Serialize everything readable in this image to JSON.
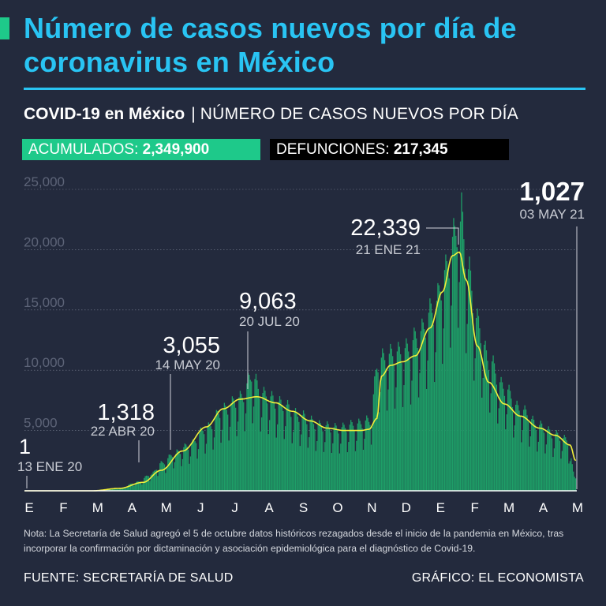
{
  "colors": {
    "accent": "#1ec98a",
    "title": "#29c4f3",
    "bars": "#1e9e67",
    "trend": "#f2ef3a",
    "grid": "#8a91a2",
    "background": "#232a3d"
  },
  "title": "Número de casos nuevos por día de coronavirus en México",
  "subtitle": {
    "main": "COVID-19 en México",
    "separator": "|",
    "rest": "NÚMERO DE CASOS NUEVOS POR DÍA"
  },
  "stats": {
    "acumulados_label": "ACUMULADOS:",
    "acumulados_value": "2,349,900",
    "defunciones_label": "DEFUNCIONES:",
    "defunciones_value": "217,345"
  },
  "chart_data": {
    "type": "bar",
    "ylim": [
      0,
      25000
    ],
    "y_ticks": [
      {
        "value": 25000,
        "label": "25,000"
      },
      {
        "value": 20000,
        "label": "20,000"
      },
      {
        "value": 15000,
        "label": "15,000"
      },
      {
        "value": 10000,
        "label": "10,000"
      },
      {
        "value": 5000,
        "label": "5,000"
      }
    ],
    "x_tick_labels": [
      "E",
      "F",
      "M",
      "A",
      "M",
      "J",
      "J",
      "A",
      "S",
      "O",
      "N",
      "D",
      "E",
      "F",
      "M",
      "A",
      "M"
    ],
    "x_range": [
      "2020-01-01",
      "2021-05-04"
    ],
    "series": {
      "daily_cases_keypoints": [
        [
          "2020-01-13",
          1
        ],
        [
          "2020-03-01",
          0
        ],
        [
          "2020-03-25",
          200
        ],
        [
          "2020-04-10",
          700
        ],
        [
          "2020-04-22",
          1318
        ],
        [
          "2020-05-01",
          2200
        ],
        [
          "2020-05-14",
          3055
        ],
        [
          "2020-05-25",
          3600
        ],
        [
          "2020-06-10",
          5000
        ],
        [
          "2020-06-25",
          6500
        ],
        [
          "2020-07-10",
          7400
        ],
        [
          "2020-07-20",
          9063
        ],
        [
          "2020-07-31",
          7700
        ],
        [
          "2020-08-15",
          7000
        ],
        [
          "2020-09-01",
          6000
        ],
        [
          "2020-09-20",
          5200
        ],
        [
          "2020-10-05",
          5000
        ],
        [
          "2020-10-20",
          5300
        ],
        [
          "2020-11-01",
          5600
        ],
        [
          "2020-11-10",
          10500
        ],
        [
          "2020-11-25",
          11000
        ],
        [
          "2020-12-05",
          11300
        ],
        [
          "2020-12-15",
          12500
        ],
        [
          "2020-12-28",
          14500
        ],
        [
          "2021-01-08",
          17500
        ],
        [
          "2021-01-15",
          20200
        ],
        [
          "2021-01-21",
          22339
        ],
        [
          "2021-01-28",
          17500
        ],
        [
          "2021-02-05",
          13500
        ],
        [
          "2021-02-15",
          10500
        ],
        [
          "2021-02-28",
          8300
        ],
        [
          "2021-03-15",
          6500
        ],
        [
          "2021-04-01",
          5200
        ],
        [
          "2021-04-15",
          4500
        ],
        [
          "2021-04-25",
          4100
        ],
        [
          "2021-05-03",
          1027
        ]
      ],
      "trend_keypoints": [
        [
          "2020-01-01",
          0
        ],
        [
          "2020-03-01",
          0
        ],
        [
          "2020-03-25",
          200
        ],
        [
          "2020-04-15",
          700
        ],
        [
          "2020-05-01",
          1700
        ],
        [
          "2020-05-20",
          3300
        ],
        [
          "2020-06-10",
          5300
        ],
        [
          "2020-06-25",
          6800
        ],
        [
          "2020-07-10",
          7600
        ],
        [
          "2020-07-25",
          7800
        ],
        [
          "2020-08-10",
          7300
        ],
        [
          "2020-08-25",
          6600
        ],
        [
          "2020-09-10",
          5800
        ],
        [
          "2020-09-25",
          5200
        ],
        [
          "2020-10-10",
          5000
        ],
        [
          "2020-10-25",
          5000
        ],
        [
          "2020-11-01",
          5100
        ],
        [
          "2020-11-08",
          6000
        ],
        [
          "2020-11-12",
          9500
        ],
        [
          "2020-11-20",
          10400
        ],
        [
          "2020-12-01",
          10700
        ],
        [
          "2020-12-12",
          11200
        ],
        [
          "2020-12-25",
          13500
        ],
        [
          "2021-01-05",
          16500
        ],
        [
          "2021-01-14",
          19500
        ],
        [
          "2021-01-20",
          19800
        ],
        [
          "2021-01-26",
          17500
        ],
        [
          "2021-02-05",
          12000
        ],
        [
          "2021-02-15",
          9000
        ],
        [
          "2021-03-01",
          7200
        ],
        [
          "2021-03-15",
          6200
        ],
        [
          "2021-04-01",
          5200
        ],
        [
          "2021-04-15",
          4600
        ],
        [
          "2021-04-28",
          3800
        ],
        [
          "2021-05-03",
          2500
        ]
      ]
    },
    "annotations": [
      {
        "date": "2020-01-13",
        "value_label": "1",
        "date_label": "13 ENE 20",
        "anchor": "start"
      },
      {
        "date": "2020-04-22",
        "value_label": "1,318",
        "date_label": "22 ABR 20",
        "anchor": "end"
      },
      {
        "date": "2020-05-14",
        "value_label": "3,055",
        "date_label": "14 MAY 20",
        "anchor": "end"
      },
      {
        "date": "2020-07-20",
        "value_label": "9,063",
        "date_label": "20 JUL 20",
        "anchor": "start"
      },
      {
        "date": "2021-01-21",
        "value_label": "22,339",
        "date_label": "21 ENE 21",
        "anchor": "end"
      },
      {
        "date": "2021-05-03",
        "value_label": "1,027",
        "date_label": "03 MAY 21",
        "anchor": "end"
      }
    ]
  },
  "note": "Nota: La Secretaría de Salud agregó el 5 de octubre datos históricos rezagados desde el inicio de la pandemia en México, tras incorporar la confirmación por dictaminación y asociación epidemiológica para el diagnóstico de Covid-19.",
  "footer": {
    "source": "FUENTE: SECRETARÍA DE SALUD",
    "credit": "GRÁFICO: EL ECONOMISTA"
  }
}
